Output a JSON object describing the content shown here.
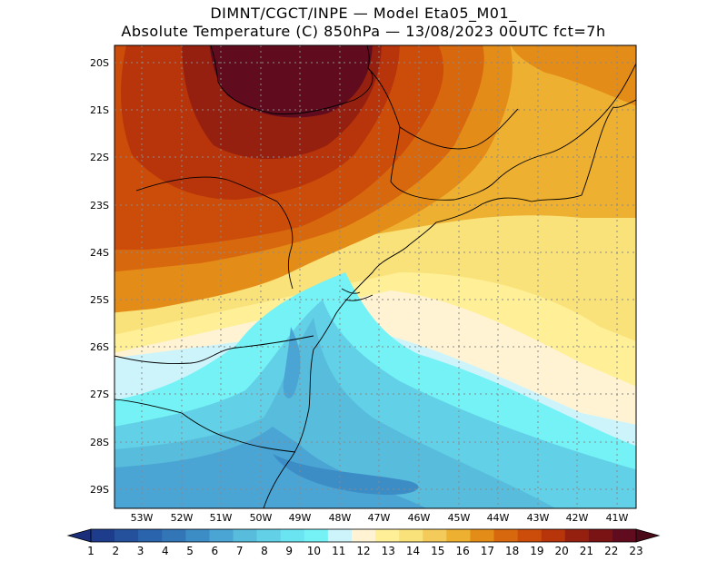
{
  "header": {
    "line1": "DIMNT/CGCT/INPE  —  Model Eta05_M01_",
    "line2": "Absolute Temperature (C) 850hPa  —  13/08/2023 00UTC fct=7h"
  },
  "axes": {
    "lat_labels": [
      "20S",
      "21S",
      "22S",
      "23S",
      "24S",
      "25S",
      "26S",
      "27S",
      "28S",
      "29S"
    ],
    "lon_labels": [
      "53W",
      "52W",
      "51W",
      "50W",
      "49W",
      "48W",
      "47W",
      "46W",
      "45W",
      "44W",
      "43W",
      "42W",
      "41W"
    ]
  },
  "colorbar": {
    "labels": [
      "1",
      "2",
      "3",
      "4",
      "5",
      "6",
      "7",
      "8",
      "9",
      "10",
      "11",
      "12",
      "13",
      "14",
      "15",
      "16",
      "17",
      "18",
      "19",
      "20",
      "21",
      "22",
      "23"
    ],
    "colors": [
      "#1e3c8c",
      "#24509c",
      "#2a64ac",
      "#3276b8",
      "#3c8cc6",
      "#4aa4d4",
      "#58bcdc",
      "#62d0e6",
      "#6ae4f0",
      "#74f2f6",
      "#cdf4fa",
      "#fff3d4",
      "#fff098",
      "#fae27a",
      "#f4ca5a",
      "#eeb030",
      "#e48c18",
      "#d8680e",
      "#cc4c0a",
      "#b8340a",
      "#962010",
      "#7a1414",
      "#600c1e"
    ],
    "arrow_low": "#1a2e7a",
    "arrow_high": "#4a0a18"
  }
}
